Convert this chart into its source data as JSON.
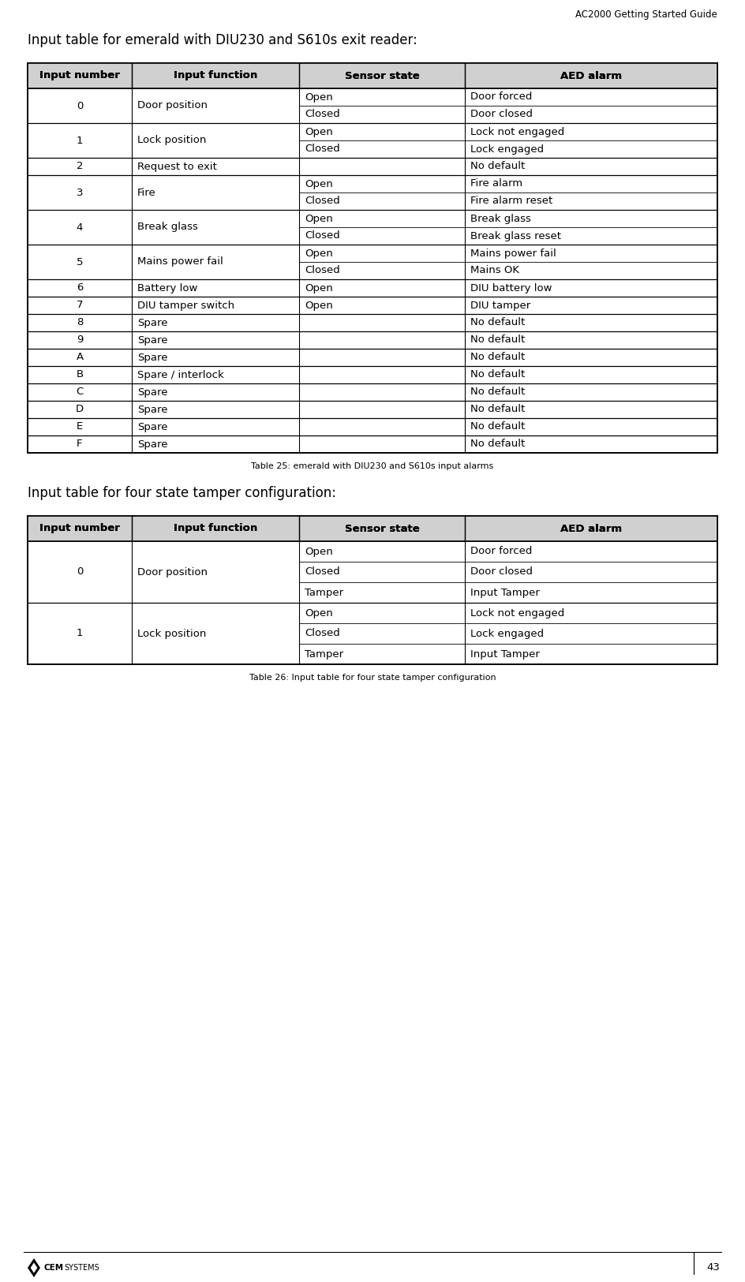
{
  "page_title": "AC2000 Getting Started Guide",
  "page_number": "43",
  "title1": "Input table for emerald with DIU230 and S610s exit reader:",
  "title2": "Input table for four state tamper configuration:",
  "table1_caption": "Table 25: emerald with DIU230 and S610s input alarms",
  "table2_caption": "Table 26: Input table for four state tamper configuration",
  "header_bg": "#d0d0d0",
  "col_headers": [
    "Input number",
    "Input function",
    "Sensor state",
    "AED alarm"
  ],
  "table1_rows": [
    [
      "0",
      "Door position",
      "Open",
      "Door forced"
    ],
    [
      "",
      "",
      "Closed",
      "Door closed"
    ],
    [
      "1",
      "Lock position",
      "Open",
      "Lock not engaged"
    ],
    [
      "",
      "",
      "Closed",
      "Lock engaged"
    ],
    [
      "2",
      "Request to exit",
      "",
      "No default"
    ],
    [
      "3",
      "Fire",
      "Open",
      "Fire alarm"
    ],
    [
      "",
      "",
      "Closed",
      "Fire alarm reset"
    ],
    [
      "4",
      "Break glass",
      "Open",
      "Break glass"
    ],
    [
      "",
      "",
      "Closed",
      "Break glass reset"
    ],
    [
      "5",
      "Mains power fail",
      "Open",
      "Mains power fail"
    ],
    [
      "",
      "",
      "Closed",
      "Mains OK"
    ],
    [
      "6",
      "Battery low",
      "Open",
      "DIU battery low"
    ],
    [
      "7",
      "DIU tamper switch",
      "Open",
      "DIU tamper"
    ],
    [
      "8",
      "Spare",
      "",
      "No default"
    ],
    [
      "9",
      "Spare",
      "",
      "No default"
    ],
    [
      "A",
      "Spare",
      "",
      "No default"
    ],
    [
      "B",
      "Spare / interlock",
      "",
      "No default"
    ],
    [
      "C",
      "Spare",
      "",
      "No default"
    ],
    [
      "D",
      "Spare",
      "",
      "No default"
    ],
    [
      "E",
      "Spare",
      "",
      "No default"
    ],
    [
      "F",
      "Spare",
      "",
      "No default"
    ]
  ],
  "table1_groups": [
    [
      0,
      1
    ],
    [
      2,
      3
    ],
    [
      4
    ],
    [
      5,
      6
    ],
    [
      7,
      8
    ],
    [
      9,
      10
    ],
    [
      11
    ],
    [
      12
    ],
    [
      13
    ],
    [
      14
    ],
    [
      15
    ],
    [
      16
    ],
    [
      17
    ],
    [
      18
    ],
    [
      19
    ],
    [
      20
    ]
  ],
  "table2_rows": [
    [
      "0",
      "Door position",
      "Open",
      "Door forced"
    ],
    [
      "",
      "",
      "Closed",
      "Door closed"
    ],
    [
      "",
      "",
      "Tamper",
      "Input Tamper"
    ],
    [
      "1",
      "Lock position",
      "Open",
      "Lock not engaged"
    ],
    [
      "",
      "",
      "Closed",
      "Lock engaged"
    ],
    [
      "",
      "",
      "Tamper",
      "Input Tamper"
    ]
  ],
  "table2_groups": [
    [
      0,
      1,
      2
    ],
    [
      3,
      4,
      5
    ]
  ],
  "footer_logo_text": "CEM SYSTEMS"
}
